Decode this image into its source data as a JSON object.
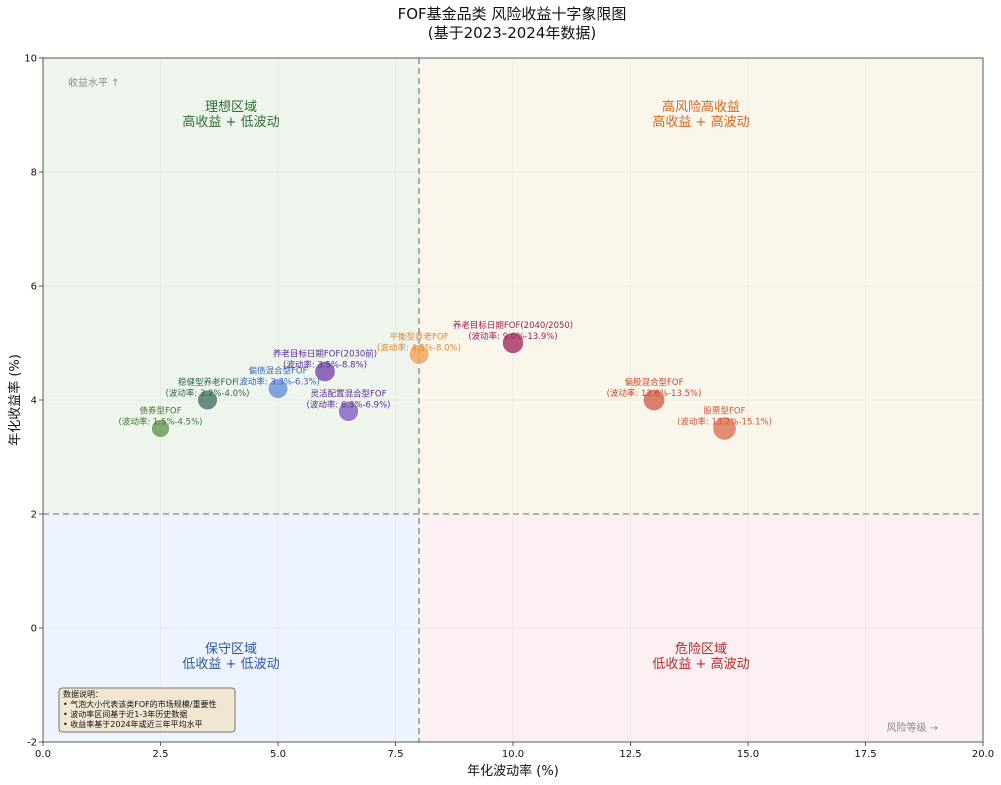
{
  "chart_data": {
    "type": "scatter",
    "title_line1": "FOF基金品类 风险收益十字象限图",
    "title_line2": "(基于2023-2024年数据)",
    "xlabel": "年化波动率 (%)",
    "ylabel": "年化收益率 (%)",
    "xlim": [
      0,
      20
    ],
    "ylim": [
      -2,
      10
    ],
    "xticks": [
      "0.0",
      "2.5",
      "5.0",
      "7.5",
      "10.0",
      "12.5",
      "15.0",
      "17.5",
      "20.0"
    ],
    "yticks": [
      "-2",
      "0",
      "2",
      "4",
      "6",
      "8",
      "10"
    ],
    "grid": true,
    "divider_x": 8,
    "divider_y": 2,
    "quadrants": [
      {
        "key": "tl",
        "line1": "理想区域",
        "line2": "高收益 + 低波动",
        "fill": "#eef5ec",
        "text_color": "#2f6b35"
      },
      {
        "key": "tr",
        "line1": "高风险高收益",
        "line2": "高收益 + 高波动",
        "fill": "#fbf6ec",
        "text_color": "#d2691e"
      },
      {
        "key": "bl",
        "line1": "保守区域",
        "line2": "低收益 + 低波动",
        "fill": "#eef4fd",
        "text_color": "#2b55a6"
      },
      {
        "key": "br",
        "line1": "危险区域",
        "line2": "低收益 + 高波动",
        "fill": "#fcf0f3",
        "text_color": "#b22a2a"
      }
    ],
    "corner_top": "收益水平 ↑",
    "corner_bottom": "风险等级 →",
    "notes": [
      "数据说明：",
      "• 气泡大小代表该类FOF的市场规模/重要性",
      "• 波动率区间基于近1-3年历史数据",
      "• 收益率基于2024年或近三年平均水平"
    ],
    "points": [
      {
        "name": "债券型FOF",
        "range": "(波动率: 1.5%-4.5%)",
        "x": 2.5,
        "y": 3.5,
        "size": 0.55,
        "color": "#6f9b5c",
        "label_color": "#3f7a2e"
      },
      {
        "name": "稳健型养老FOF",
        "range": "(波动率: 3.2%-4.0%)",
        "x": 3.5,
        "y": 4.0,
        "size": 0.7,
        "color": "#4d7b6e",
        "label_color": "#2e6654"
      },
      {
        "name": "偏债混合型FOF",
        "range": "(波动率: 3.3%-6.3%)",
        "x": 5.0,
        "y": 4.2,
        "size": 0.7,
        "color": "#6f97d8",
        "label_color": "#3866b8"
      },
      {
        "name": "养老目标日期FOF(2030前)",
        "range": "(波动率: 3.5%-8.8%)",
        "x": 6.0,
        "y": 4.5,
        "size": 0.75,
        "color": "#7c52b0",
        "label_color": "#5e2d94"
      },
      {
        "name": "灵活配置混合型FOF",
        "range": "(波动率: 6.3%-6.9%)",
        "x": 6.5,
        "y": 3.8,
        "size": 0.72,
        "color": "#8a66c4",
        "label_color": "#5e2d94"
      },
      {
        "name": "平衡型养老FOF",
        "range": "(波动率: 4.5%-8.0%)",
        "x": 8.0,
        "y": 4.8,
        "size": 0.7,
        "color": "#f2a65e",
        "label_color": "#e08a2e"
      },
      {
        "name": "养老目标日期FOF(2040/2050)",
        "range": "(波动率: 9.0%-13.9%)",
        "x": 10.0,
        "y": 5.0,
        "size": 0.8,
        "color": "#a8386a",
        "label_color": "#9c2156"
      },
      {
        "name": "偏股混合型FOF",
        "range": "(波动率: 12.6%-13.5%)",
        "x": 13.0,
        "y": 4.0,
        "size": 0.85,
        "color": "#d36b54",
        "label_color": "#c24a30"
      },
      {
        "name": "股票型FOF",
        "range": "(波动率: 13.2%-15.1%)",
        "x": 14.5,
        "y": 3.5,
        "size": 1.0,
        "color": "#dc7a5e",
        "label_color": "#cc5530"
      }
    ]
  }
}
